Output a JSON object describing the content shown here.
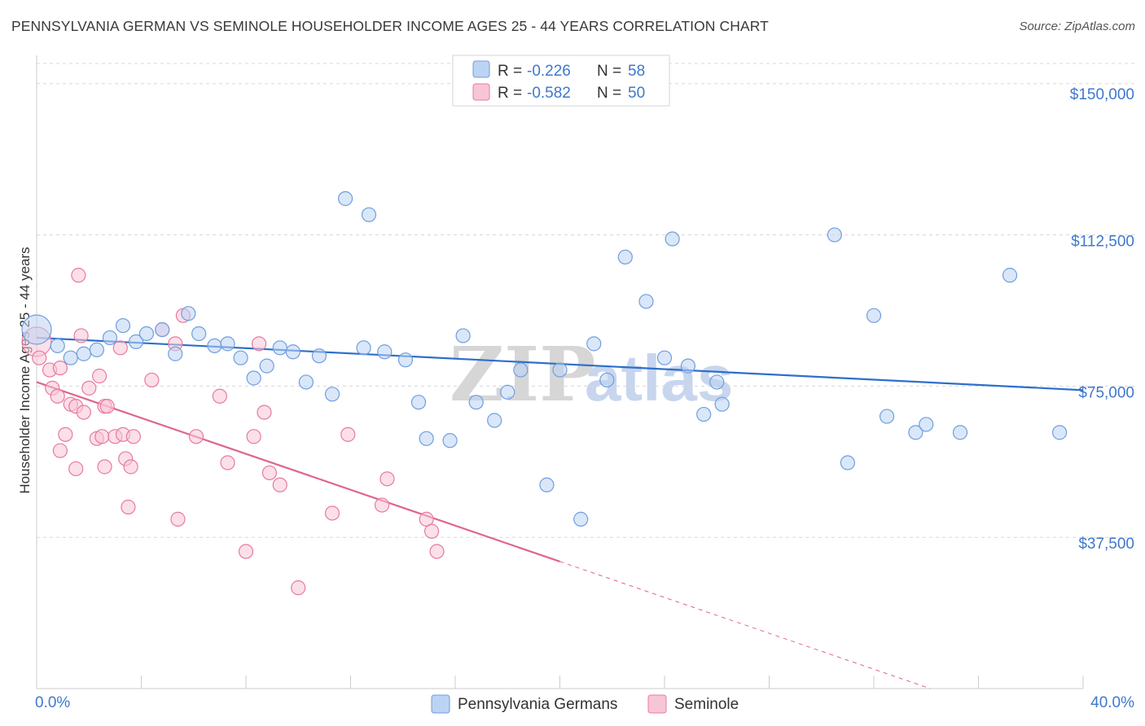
{
  "title": "PENNSYLVANIA GERMAN VS SEMINOLE HOUSEHOLDER INCOME AGES 25 - 44 YEARS CORRELATION CHART",
  "source": "Source: ZipAtlas.com",
  "watermark": {
    "part1": "ZIP",
    "part2": "atlas"
  },
  "colors": {
    "blue": "#6f9ee0",
    "blue_fill": "#bcd3f3",
    "blue_line": "#2d6fcc",
    "pink": "#e87aa0",
    "pink_fill": "#f7c6d6",
    "pink_line": "#de6592",
    "axis_text": "#3f78cc",
    "grid": "#d8d8d8"
  },
  "legend": {
    "rows": [
      {
        "r_label": "R =",
        "r_value": "-0.226",
        "n_label": "N =",
        "n_value": "58"
      },
      {
        "r_label": "R =",
        "r_value": "-0.582",
        "n_label": "N =",
        "n_value": "50"
      }
    ]
  },
  "bottom_legend": [
    "Pennsylvania Germans",
    "Seminole"
  ],
  "chart_data": {
    "type": "scatter",
    "title": "PENNSYLVANIA GERMAN VS SEMINOLE HOUSEHOLDER INCOME AGES 25 - 44 YEARS CORRELATION CHART",
    "xlabel": "",
    "ylabel": "Householder Income Ages 25 - 44 years",
    "xlim": [
      0,
      40
    ],
    "ylim": [
      0,
      155000
    ],
    "x_tick_labels": [
      "0.0%",
      "40.0%"
    ],
    "y_ticks": [
      37500,
      75000,
      112500,
      150000
    ],
    "y_tick_labels": [
      "$37,500",
      "$75,000",
      "$112,500",
      "$150,000"
    ],
    "grid": true,
    "legend_position": "top-center",
    "series": [
      {
        "name": "Pennsylvania Germans",
        "R": -0.226,
        "N": 58,
        "trend": {
          "x0": 0,
          "y0": 87000,
          "x1": 40,
          "y1": 74000
        },
        "points": [
          [
            0.0,
            89000,
            "large"
          ],
          [
            0.8,
            85000
          ],
          [
            1.3,
            82000
          ],
          [
            1.8,
            83000
          ],
          [
            2.3,
            84000
          ],
          [
            2.8,
            87000
          ],
          [
            3.3,
            90000
          ],
          [
            3.8,
            86000
          ],
          [
            4.2,
            88000
          ],
          [
            4.8,
            89000
          ],
          [
            5.3,
            83000
          ],
          [
            5.8,
            93000
          ],
          [
            6.2,
            88000
          ],
          [
            6.8,
            85000
          ],
          [
            7.3,
            85500
          ],
          [
            7.8,
            82000
          ],
          [
            8.3,
            77000
          ],
          [
            8.8,
            80000
          ],
          [
            9.3,
            84500
          ],
          [
            9.8,
            83500
          ],
          [
            10.3,
            76000
          ],
          [
            10.8,
            82500
          ],
          [
            11.3,
            73000
          ],
          [
            11.8,
            121500
          ],
          [
            12.5,
            84500
          ],
          [
            12.7,
            117500
          ],
          [
            13.3,
            83500
          ],
          [
            14.1,
            81500
          ],
          [
            14.6,
            71000
          ],
          [
            14.9,
            62000
          ],
          [
            15.8,
            61500
          ],
          [
            16.3,
            87500
          ],
          [
            16.8,
            71000
          ],
          [
            17.5,
            66500
          ],
          [
            18.0,
            73500
          ],
          [
            18.5,
            79000
          ],
          [
            19.5,
            50500
          ],
          [
            20.0,
            79000
          ],
          [
            20.8,
            42000
          ],
          [
            21.3,
            85500
          ],
          [
            21.8,
            76500
          ],
          [
            22.5,
            107000
          ],
          [
            23.3,
            96000
          ],
          [
            24.0,
            82000
          ],
          [
            24.3,
            111500
          ],
          [
            24.9,
            80000
          ],
          [
            25.5,
            68000
          ],
          [
            26.0,
            76000
          ],
          [
            26.2,
            70500
          ],
          [
            30.5,
            112500
          ],
          [
            31.0,
            56000
          ],
          [
            32.0,
            92500
          ],
          [
            32.5,
            67500
          ],
          [
            33.6,
            63500
          ],
          [
            34.0,
            65500
          ],
          [
            35.3,
            63500
          ],
          [
            37.2,
            102500
          ],
          [
            39.1,
            63500
          ]
        ]
      },
      {
        "name": "Seminole",
        "R": -0.582,
        "N": 50,
        "trend": {
          "x0": 0,
          "y0": 76000,
          "x1": 20,
          "y1": 31500,
          "dash_x1": 40,
          "dash_y1": -13000
        },
        "points": [
          [
            0.0,
            86000,
            "large"
          ],
          [
            0.1,
            82000
          ],
          [
            0.5,
            79000
          ],
          [
            0.6,
            74500
          ],
          [
            0.8,
            72500
          ],
          [
            0.9,
            59000
          ],
          [
            1.1,
            63000
          ],
          [
            1.3,
            70500
          ],
          [
            1.5,
            70000
          ],
          [
            1.5,
            54500
          ],
          [
            1.6,
            102500
          ],
          [
            1.7,
            87500
          ],
          [
            1.8,
            68500
          ],
          [
            2.0,
            74500
          ],
          [
            2.3,
            62000
          ],
          [
            2.4,
            77500
          ],
          [
            2.5,
            62500
          ],
          [
            2.6,
            70000
          ],
          [
            2.6,
            55000
          ],
          [
            2.7,
            70000
          ],
          [
            3.0,
            62500
          ],
          [
            3.2,
            84500
          ],
          [
            3.3,
            63000
          ],
          [
            3.4,
            57000
          ],
          [
            3.5,
            45000
          ],
          [
            3.6,
            55000
          ],
          [
            3.7,
            62500
          ],
          [
            4.4,
            76500
          ],
          [
            4.8,
            89000
          ],
          [
            5.3,
            85500
          ],
          [
            5.4,
            42000
          ],
          [
            5.6,
            92500
          ],
          [
            6.1,
            62500
          ],
          [
            7.0,
            72500
          ],
          [
            7.3,
            56000
          ],
          [
            8.0,
            34000
          ],
          [
            8.3,
            62500
          ],
          [
            8.5,
            85500
          ],
          [
            8.7,
            68500
          ],
          [
            8.9,
            53500
          ],
          [
            9.3,
            50500
          ],
          [
            10.0,
            25000
          ],
          [
            11.3,
            43500
          ],
          [
            11.9,
            63000
          ],
          [
            13.2,
            45500
          ],
          [
            13.4,
            52000
          ],
          [
            14.9,
            42000
          ],
          [
            15.1,
            39000
          ],
          [
            15.3,
            34000
          ],
          [
            0.9,
            79500
          ]
        ]
      }
    ]
  }
}
